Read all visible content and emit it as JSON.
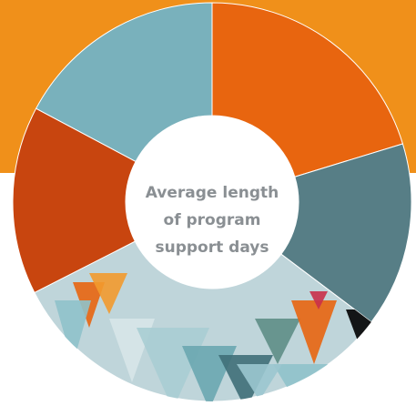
{
  "center_label": {
    "lines": [
      "Average length",
      "of program",
      "support days"
    ]
  }
}
